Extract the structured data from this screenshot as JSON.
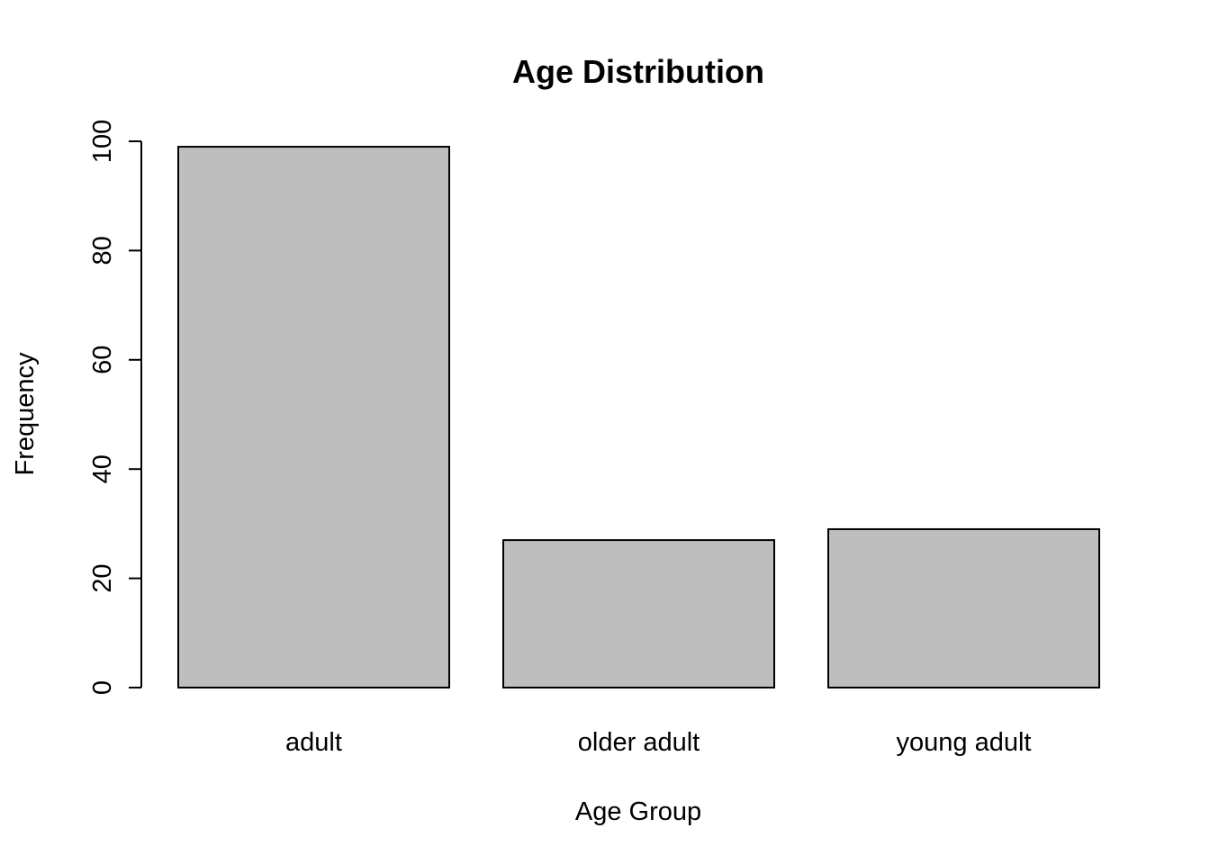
{
  "chart_data": {
    "type": "bar",
    "title": "Age Distribution",
    "xlabel": "Age Group",
    "ylabel": "Frequency",
    "categories": [
      "adult",
      "older adult",
      "young adult"
    ],
    "values": [
      99,
      27,
      29
    ],
    "ylim": [
      0,
      100
    ],
    "yticks": [
      "0",
      "20",
      "40",
      "60",
      "80",
      "100"
    ],
    "grid": false,
    "legend": "none",
    "bar_color": "#bebebe",
    "bar_border_color": "#000000"
  }
}
